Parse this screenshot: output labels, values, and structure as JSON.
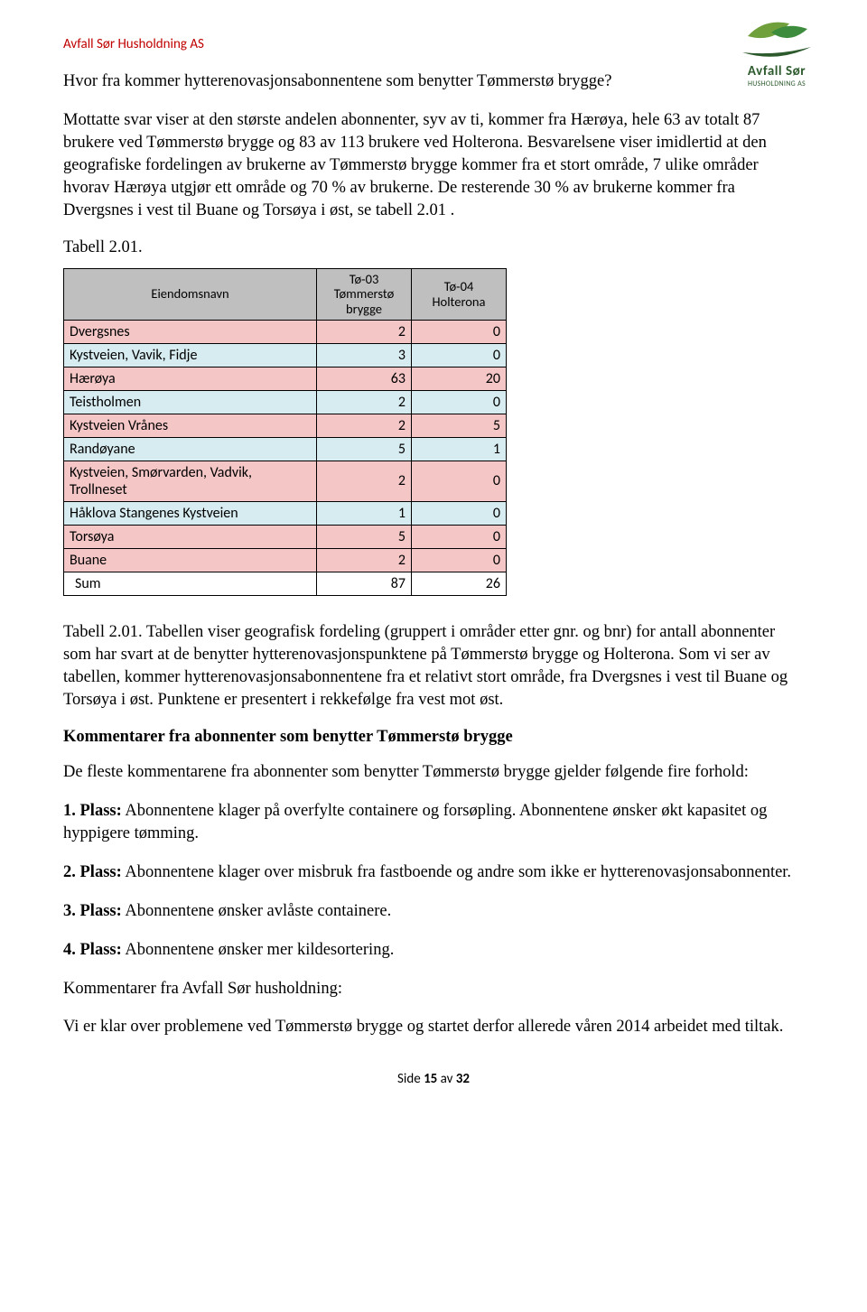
{
  "company_name": "Avfall Sør Husholdning AS",
  "logo": {
    "title": "Avfall Sør",
    "sub": "HUSHOLDNING AS",
    "leaf_left": "#6fa03c",
    "leaf_right": "#3d8b3d",
    "swoosh": "#2c5a2c"
  },
  "intro_question": "Hvor fra kommer hytterenovasjonsabonnentene som benytter Tømmerstø brygge?",
  "intro_para": "Mottatte svar viser at den største andelen abonnenter, syv av ti, kommer fra Hærøya, hele 63 av totalt 87 brukere ved Tømmerstø brygge og  83 av 113 brukere ved Holterona. Besvarelsene viser imidlertid at den geografiske fordelingen av brukerne av Tømmerstø brygge kommer fra et stort område, 7 ulike områder hvorav Hærøya utgjør ett område og 70 % av brukerne. De resterende 30 % av brukerne kommer fra Dvergsnes i vest til Buane og Torsøya i øst, se tabell 2.01 .",
  "table_label": "Tabell 2.01.",
  "table": {
    "header_bg": "#bfbfbf",
    "row_colors": {
      "pink": "#f4c6c6",
      "blue": "#d7ecf0",
      "white": "#ffffff"
    },
    "columns": [
      {
        "label": "Eiendomsnavn"
      },
      {
        "label": "Tø-03\nTømmerstø\nbrygge"
      },
      {
        "label": "Tø-04\nHolterona"
      }
    ],
    "rows": [
      {
        "name": "Dvergsnes",
        "c1": "2",
        "c2": "0",
        "color": "pink"
      },
      {
        "name": "Kystveien, Vavik, Fidje",
        "c1": "3",
        "c2": "0",
        "color": "blue"
      },
      {
        "name": "Hærøya",
        "c1": "63",
        "c2": "20",
        "color": "pink"
      },
      {
        "name": "Teistholmen",
        "c1": "2",
        "c2": "0",
        "color": "blue"
      },
      {
        "name": "Kystveien Vrånes",
        "c1": "2",
        "c2": "5",
        "color": "pink"
      },
      {
        "name": "Randøyane",
        "c1": "5",
        "c2": "1",
        "color": "blue"
      },
      {
        "name": "Kystveien, Smørvarden, Vadvik, Trollneset",
        "c1": "2",
        "c2": "0",
        "color": "pink"
      },
      {
        "name": "Håklova Stangenes Kystveien",
        "c1": "1",
        "c2": "0",
        "color": "blue"
      },
      {
        "name": "Torsøya",
        "c1": "5",
        "c2": "0",
        "color": "pink"
      },
      {
        "name": "Buane",
        "c1": "2",
        "c2": "0",
        "color": "pink"
      },
      {
        "name": "Sum",
        "c1": "87",
        "c2": "26",
        "color": "white",
        "indent": true
      }
    ]
  },
  "caption_para": "Tabell 2.01. Tabellen viser geografisk fordeling (gruppert i områder etter gnr. og bnr) for antall abonnenter som har svart at de benytter hytterenovasjonspunktene på Tømmerstø brygge og Holterona. Som vi ser av tabellen, kommer hytterenovasjonsabonnentene fra et relativt stort område, fra Dvergsnes i vest til Buane og Torsøya i øst. Punktene er presentert i rekkefølge fra vest mot øst.",
  "sub1": "Kommentarer fra abonnenter som benytter Tømmerstø brygge",
  "sub1_para": "De fleste kommentarene fra abonnenter som benytter Tømmerstø brygge gjelder følgende fire forhold:",
  "points": [
    {
      "label": "1. Plass:",
      "text": " Abonnentene klager på overfylte containere og forsøpling. Abonnentene ønsker økt kapasitet og hyppigere tømming."
    },
    {
      "label": "2. Plass:",
      "text": " Abonnentene klager over misbruk fra fastboende og andre som ikke er hytterenovasjonsabonnenter."
    },
    {
      "label": "3. Plass:",
      "text": " Abonnentene ønsker avlåste containere."
    },
    {
      "label": "4. Plass:",
      "text": " Abonnentene ønsker mer kildesortering."
    }
  ],
  "sub2": "Kommentarer fra Avfall Sør husholdning:",
  "closing": "Vi er klar over problemene ved Tømmerstø brygge og startet derfor allerede våren 2014 arbeidet med tiltak.",
  "footer": {
    "prefix": "Side ",
    "page": "15",
    "mid": " av ",
    "total": "32"
  }
}
